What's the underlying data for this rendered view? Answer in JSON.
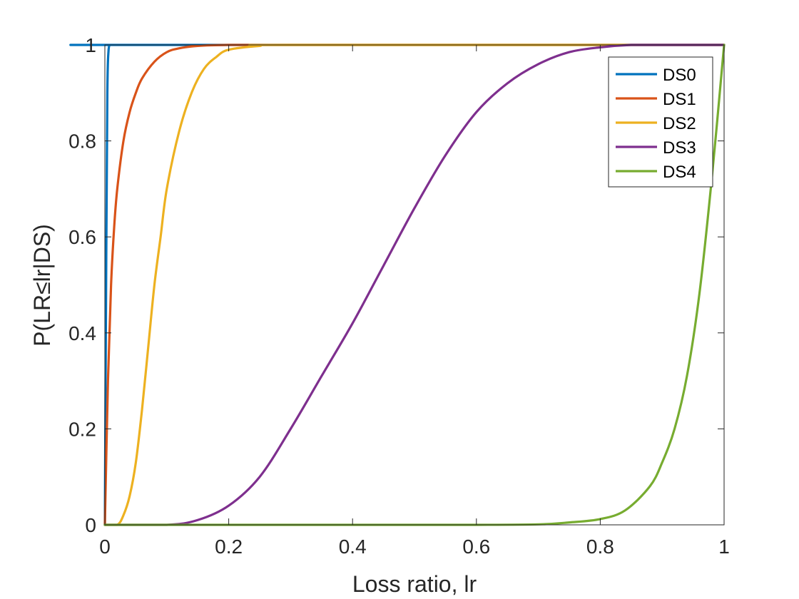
{
  "chart_data": {
    "type": "line",
    "xlabel": "Loss ratio, lr",
    "ylabel": "P(LR≤lr|DS)",
    "xlim": [
      0,
      1
    ],
    "ylim": [
      0,
      1
    ],
    "xticks": [
      "0",
      "0.2",
      "0.4",
      "0.6",
      "0.8",
      "1"
    ],
    "yticks": [
      "0",
      "0.2",
      "0.4",
      "0.6",
      "0.8",
      "1"
    ],
    "grid": false,
    "legend_position": "top-right",
    "series": [
      {
        "name": "DS0",
        "color": "#0072BD",
        "x": [
          0,
          0.002,
          0.004,
          0.006,
          0.008,
          0.01,
          0.02,
          1
        ],
        "y": [
          0,
          0.5,
          0.9,
          0.99,
          1.0,
          1.0,
          1.0,
          1.0
        ]
      },
      {
        "name": "DS1",
        "color": "#D95319",
        "x": [
          0,
          0.005,
          0.01,
          0.015,
          0.02,
          0.03,
          0.04,
          0.05,
          0.06,
          0.08,
          0.1,
          0.12,
          0.15,
          0.2,
          0.3,
          1
        ],
        "y": [
          0,
          0.3,
          0.5,
          0.62,
          0.7,
          0.8,
          0.86,
          0.9,
          0.93,
          0.965,
          0.985,
          0.993,
          0.998,
          1.0,
          1.0,
          1.0
        ]
      },
      {
        "name": "DS2",
        "color": "#EDB120",
        "x": [
          0,
          0.02,
          0.03,
          0.04,
          0.05,
          0.06,
          0.07,
          0.08,
          0.09,
          0.1,
          0.12,
          0.14,
          0.16,
          0.18,
          0.2,
          0.25,
          0.3,
          1
        ],
        "y": [
          0,
          0.0,
          0.02,
          0.06,
          0.13,
          0.24,
          0.37,
          0.5,
          0.6,
          0.7,
          0.82,
          0.9,
          0.95,
          0.975,
          0.99,
          0.998,
          1.0,
          1.0
        ]
      },
      {
        "name": "DS3",
        "color": "#7E2F8E",
        "x": [
          0,
          0.1,
          0.15,
          0.2,
          0.25,
          0.3,
          0.35,
          0.4,
          0.45,
          0.5,
          0.55,
          0.6,
          0.65,
          0.7,
          0.75,
          0.8,
          0.85,
          0.9,
          1
        ],
        "y": [
          0,
          0.0,
          0.01,
          0.04,
          0.1,
          0.2,
          0.31,
          0.42,
          0.54,
          0.66,
          0.77,
          0.86,
          0.92,
          0.96,
          0.985,
          0.995,
          1.0,
          1.0,
          1.0
        ]
      },
      {
        "name": "DS4",
        "color": "#77AC30",
        "x": [
          0,
          0.5,
          0.6,
          0.7,
          0.75,
          0.8,
          0.84,
          0.88,
          0.9,
          0.92,
          0.94,
          0.96,
          0.98,
          1.0
        ],
        "y": [
          0,
          0.0,
          0.0,
          0.001,
          0.005,
          0.012,
          0.03,
          0.08,
          0.13,
          0.2,
          0.31,
          0.48,
          0.72,
          1.0
        ]
      }
    ]
  }
}
